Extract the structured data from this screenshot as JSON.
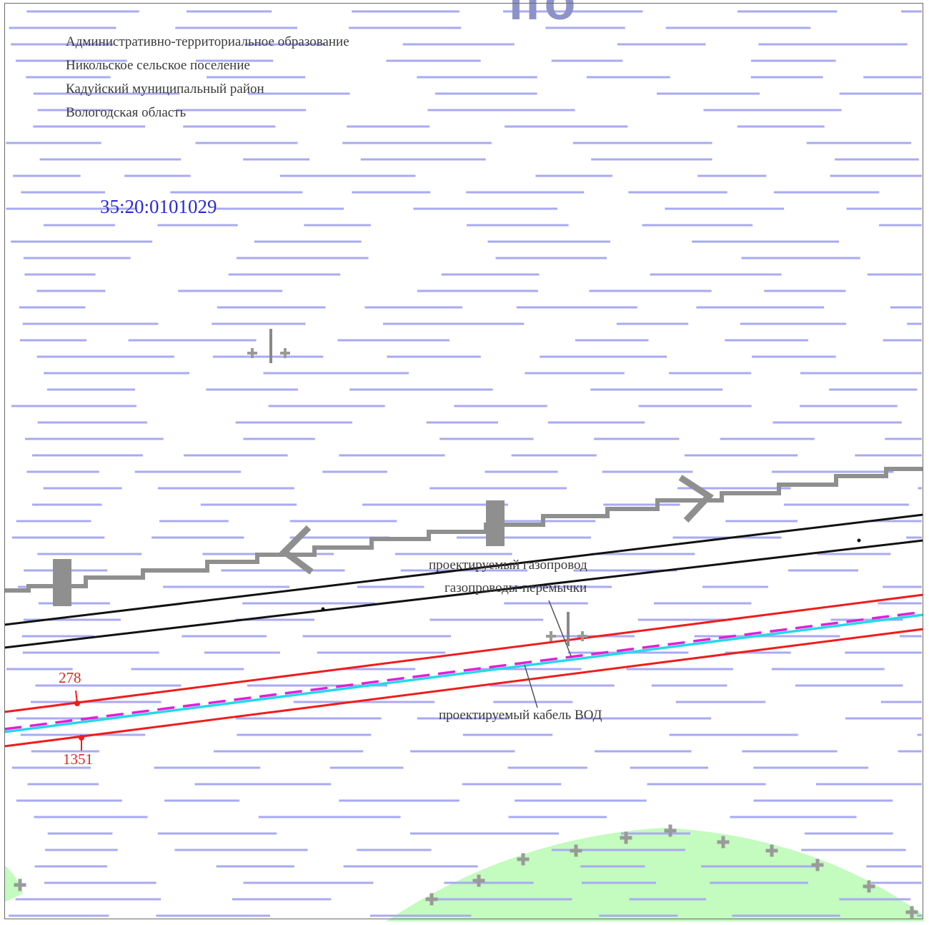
{
  "header": {
    "fragment": "по",
    "admin": [
      "Административно-территориальное образование",
      "Никольское сельское поселение",
      "Кадуйский муниципальный район",
      "Вологодская область"
    ]
  },
  "parcel": {
    "number": "35:20:0101029"
  },
  "labels": {
    "gas_pipeline": "проектируемый газопровод",
    "gas_jumpers": "газопроводы-перемычки",
    "fiber_cable": "проектируемый кабель ВОД"
  },
  "points": {
    "upper": "278",
    "lower": "1351"
  },
  "colors": {
    "hatch": "#a9aaf2",
    "meadow": "#c4fbbf",
    "road": "#8f8f8f",
    "pipeline_corridor": "#f01c1c",
    "gas_line": "#e21fd6",
    "cable_line": "#24d8e8",
    "boundary": "#111111",
    "parcel_number": "#2a2ad8"
  }
}
